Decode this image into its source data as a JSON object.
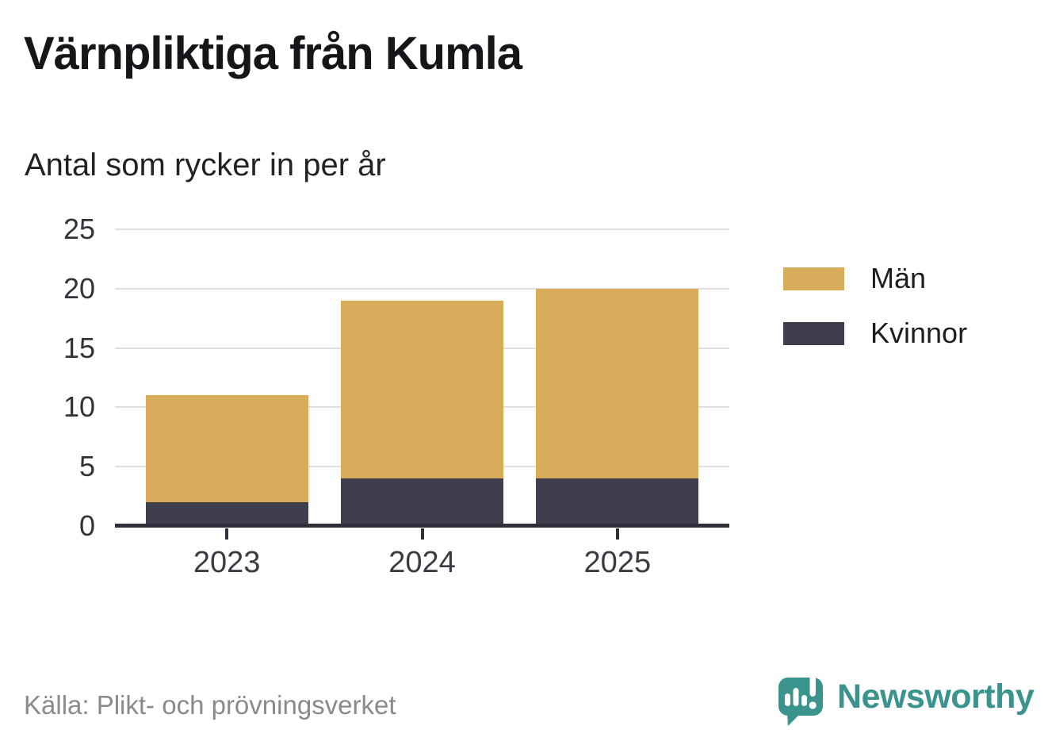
{
  "title": "Värnpliktiga från Kumla",
  "subtitle": "Antal som rycker in per år",
  "source": "Källa: Plikt- och prövningsverket",
  "brand": {
    "name": "Newsworthy",
    "color": "#3a938c"
  },
  "colors": {
    "men": "#d9ac5c",
    "women": "#3f3e4e",
    "axis": "#322f3a",
    "grid": "#dfdfdf",
    "tick_label": "#3b3b43",
    "source_text": "#8a8a8a"
  },
  "chart_data": {
    "type": "bar",
    "stacked": true,
    "title": "Värnpliktiga från Kumla",
    "subtitle": "Antal som rycker in per år",
    "categories": [
      "2023",
      "2024",
      "2025"
    ],
    "series": [
      {
        "name": "Män",
        "color": "#d9ac5c",
        "values": [
          9,
          15,
          16
        ]
      },
      {
        "name": "Kvinnor",
        "color": "#3f3e4e",
        "values": [
          2,
          4,
          4
        ]
      }
    ],
    "totals": [
      11,
      19,
      20
    ],
    "xlabel": "",
    "ylabel": "",
    "y_ticks": [
      0,
      5,
      10,
      15,
      20,
      25
    ],
    "ylim": [
      0,
      25
    ],
    "grid": true,
    "legend_position": "right"
  }
}
